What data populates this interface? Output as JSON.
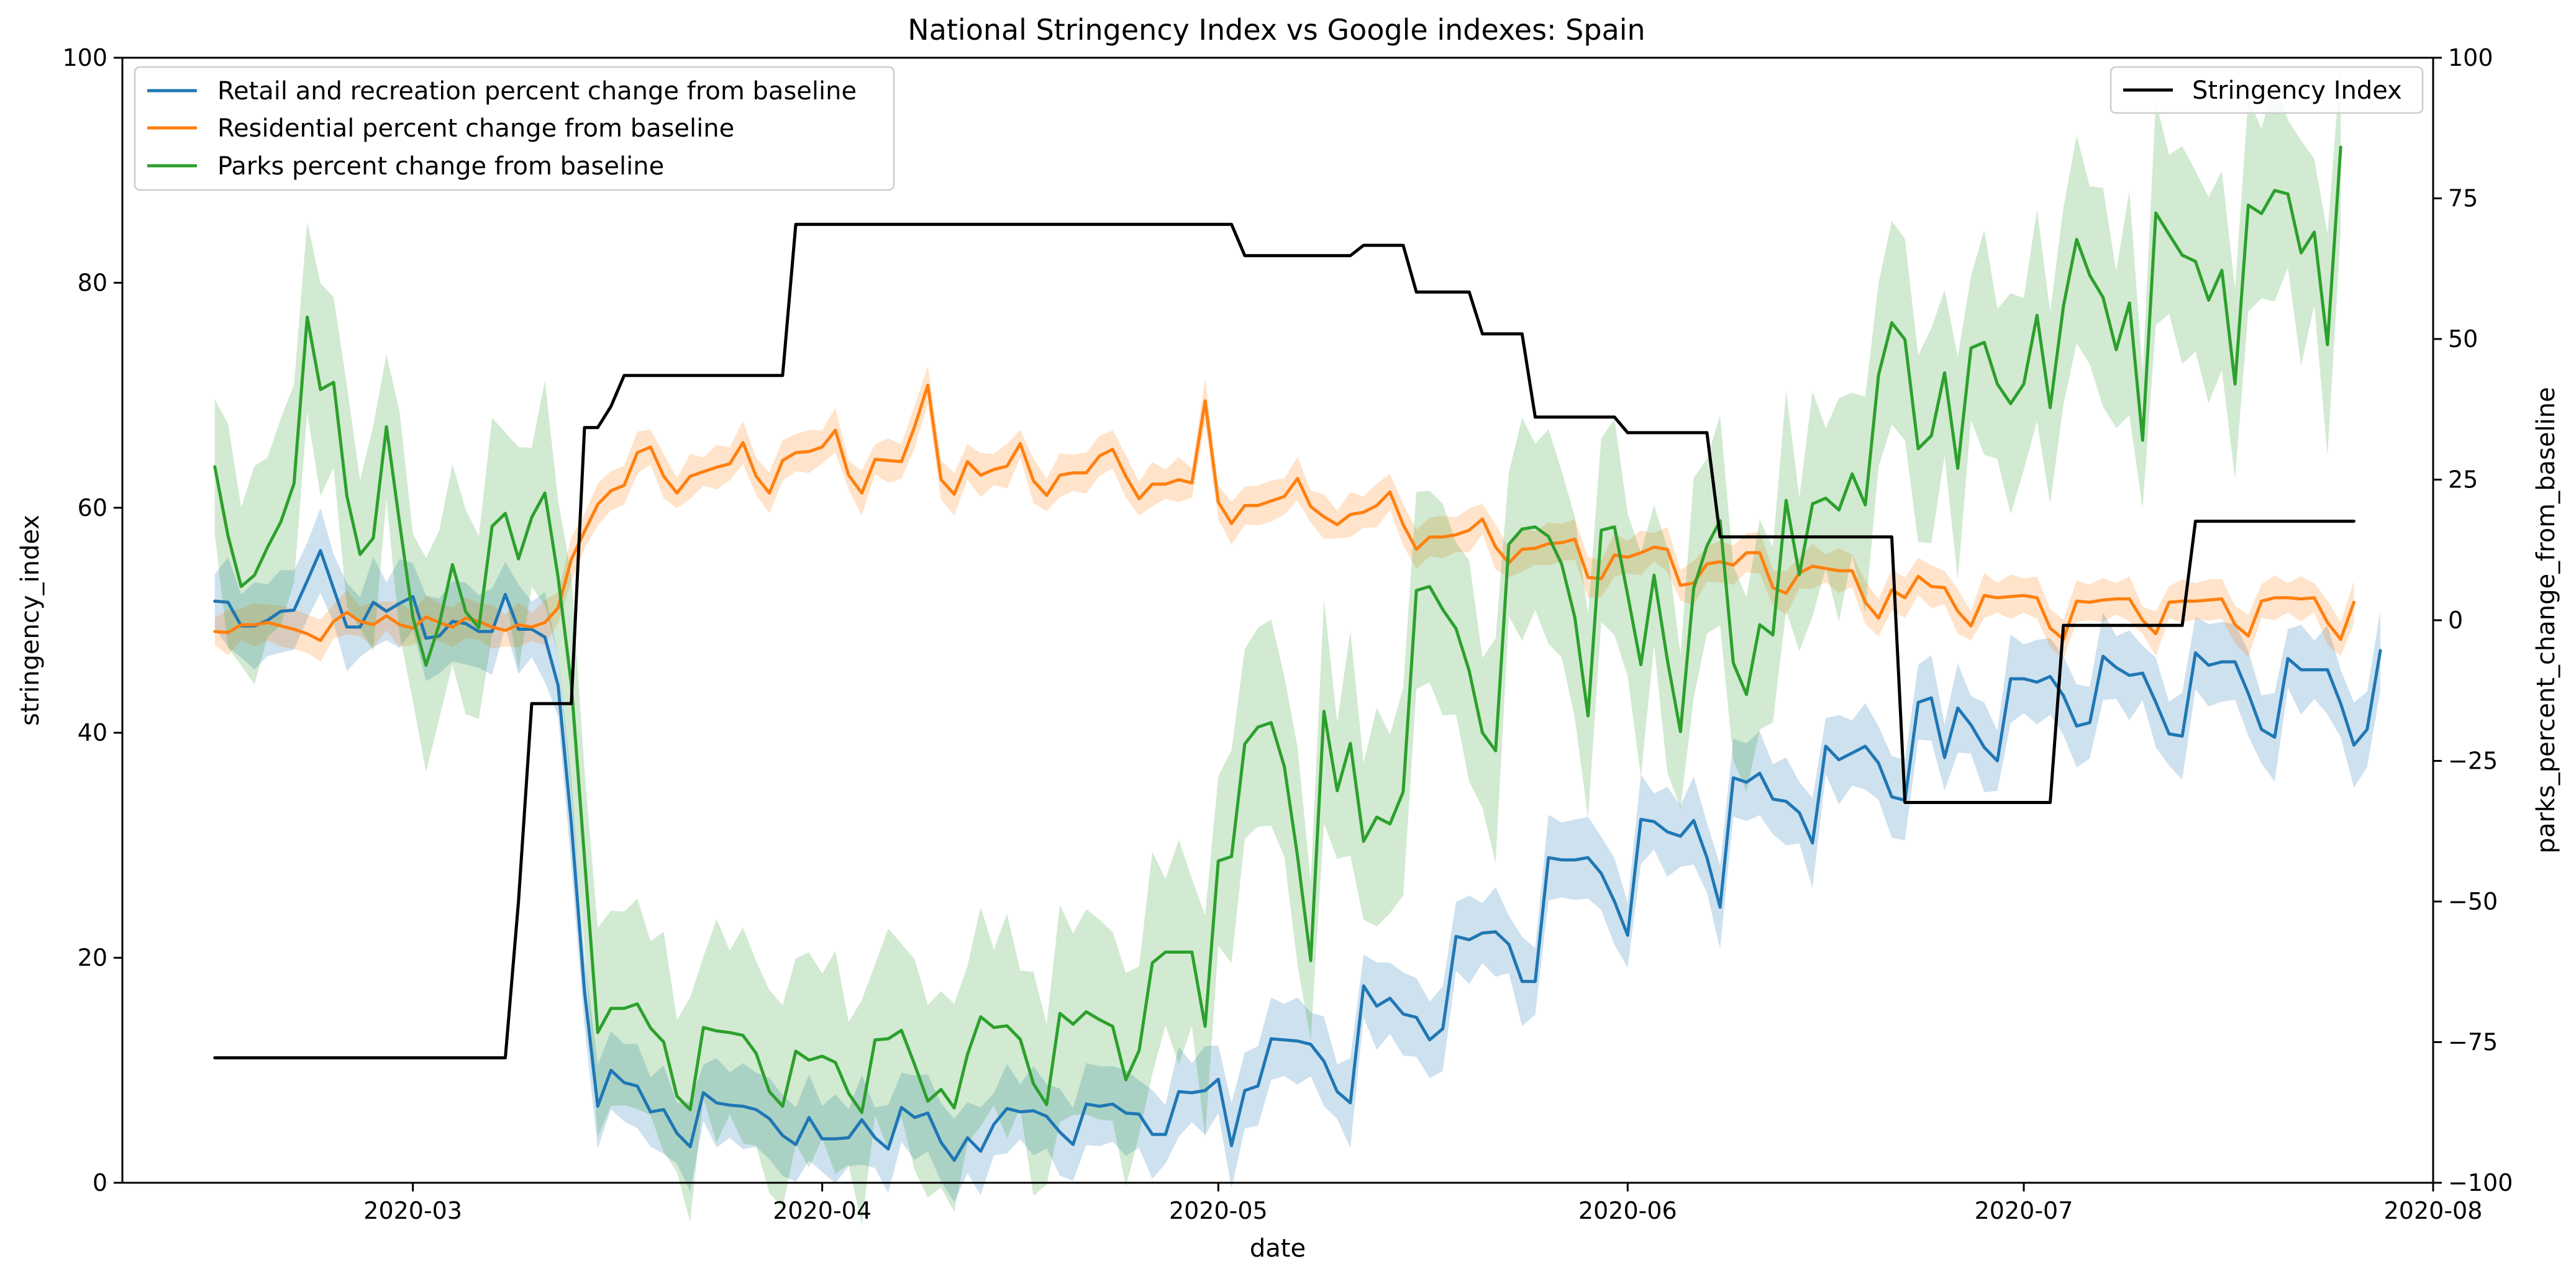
{
  "chart_data": {
    "type": "line",
    "title": "National Stringency Index vs Google indexes: Spain",
    "xlabel": "date",
    "ylabel_left": "stringency_index",
    "ylabel_right": "parks_percent_change_from_baseline",
    "ylim_left": [
      0,
      100
    ],
    "ylim_right": [
      -100,
      100
    ],
    "xlim": [
      "2020-02-08",
      "2020-08-01"
    ],
    "x_ticks": [
      "2020-03-01",
      "2020-04-01",
      "2020-05-01",
      "2020-06-01",
      "2020-07-01",
      "2020-08-01"
    ],
    "x_tick_labels": [
      "2020-03",
      "2020-04",
      "2020-05",
      "2020-06",
      "2020-07",
      "2020-08"
    ],
    "y_left_ticks": [
      "0",
      "20",
      "40",
      "60",
      "80",
      "100"
    ],
    "y_right_ticks": [
      "−100",
      "−75",
      "−50",
      "−25",
      "0",
      "25",
      "50",
      "75",
      "100"
    ],
    "grid": false,
    "legend_left_position": "upper-left",
    "legend_right_position": "upper-right",
    "series": [
      {
        "name": "Retail and recreation percent change from baseline",
        "axis": "left",
        "color": "#1f77b4",
        "start_date": "2020-02-15",
        "values": [
          51.7,
          51.6,
          49.5,
          49.5,
          50,
          50.8,
          50.9,
          53.5,
          56.2,
          52.8,
          49.4,
          49.4,
          51.6,
          50.8,
          51.5,
          52.1,
          48.4,
          48.6,
          49.9,
          49.7,
          49,
          49,
          52.3,
          49.2,
          49.2,
          48.5,
          44.2,
          32,
          17,
          6.8,
          10,
          8.9,
          8.6,
          6.3,
          6.5,
          4.4,
          3.2,
          8,
          7.1,
          6.9,
          6.8,
          6.5,
          5.7,
          4.2,
          3.4,
          5.8,
          3.9,
          3.9,
          4,
          5.6,
          4,
          3,
          6.7,
          5.8,
          6.2,
          3.6,
          2,
          4,
          2.8,
          5.2,
          6.6,
          6.3,
          6.4,
          5.9,
          4.5,
          3.4,
          7,
          6.8,
          7,
          6.2,
          6.1,
          4.3,
          4.3,
          8.1,
          8,
          8.2,
          9.2,
          3.3,
          8.2,
          8.6,
          12.8,
          12.7,
          12.6,
          12.3,
          10.8,
          8.1,
          7.1,
          17.5,
          15.7,
          16.4,
          15,
          14.7,
          12.7,
          13.7,
          21.9,
          21.6,
          22.2,
          22.3,
          21.2,
          17.9,
          17.9,
          28.9,
          28.7,
          28.7,
          28.9,
          27.5,
          25,
          22,
          32.3,
          32.1,
          31.2,
          30.8,
          32.2,
          28.9,
          24.5,
          36,
          35.6,
          36.4,
          34.1,
          33.9,
          32.9,
          30.2,
          38.8,
          37.6,
          38.2,
          38.8,
          37.3,
          34.3,
          34,
          42.7,
          43.1,
          37.8,
          42.2,
          40.7,
          38.7,
          37.5,
          44.8,
          44.8,
          44.5,
          45,
          43.3,
          40.6,
          40.9,
          46.8,
          45.8,
          45.1,
          45.3,
          42.7,
          39.9,
          39.7,
          47.1,
          46,
          46.3,
          46.3,
          43.5,
          40.3,
          39.6,
          46.6,
          45.6,
          45.6,
          45.6,
          42.6,
          38.9,
          40.3,
          47.3
        ]
      },
      {
        "name": "Residential percent change from baseline",
        "axis": "left",
        "color": "#ff7f0e",
        "start_date": "2020-02-15",
        "values": [
          49,
          48.9,
          49.6,
          49.6,
          49.8,
          49.5,
          49.2,
          48.8,
          48.2,
          49.9,
          50.7,
          49.9,
          49.6,
          50.4,
          49.6,
          49.3,
          50.3,
          49.8,
          49.4,
          50.2,
          49.9,
          49.4,
          49.1,
          49.6,
          49.4,
          49.8,
          51.1,
          55.4,
          57.9,
          60.3,
          61.5,
          62,
          64.9,
          65.4,
          62.8,
          61.3,
          62.8,
          63.2,
          63.6,
          63.9,
          65.8,
          62.8,
          61.3,
          64.2,
          64.9,
          65,
          65.4,
          66.9,
          62.9,
          61.3,
          64.3,
          64.2,
          64.1,
          67.2,
          70.9,
          62.5,
          61.2,
          64.1,
          62.9,
          63.4,
          63.7,
          65.7,
          62.4,
          61.1,
          62.9,
          63.1,
          63.1,
          64.6,
          65.2,
          62.8,
          60.8,
          62.1,
          62.1,
          62.5,
          62.2,
          69.5,
          60.5,
          58.6,
          60.2,
          60.2,
          60.6,
          61,
          62.6,
          60.1,
          59.2,
          58.5,
          59.4,
          59.6,
          60.2,
          61.4,
          58.5,
          56.3,
          57.4,
          57.4,
          57.6,
          58,
          59,
          56.5,
          55.1,
          56.3,
          56.4,
          56.8,
          56.9,
          57.2,
          53.8,
          53.7,
          55.8,
          55.6,
          56,
          56.5,
          56.3,
          53.1,
          53.3,
          55,
          55.2,
          54.9,
          56,
          56,
          52.9,
          52.4,
          54.2,
          54.8,
          54.6,
          54.4,
          54.4,
          51.6,
          50.2,
          52.7,
          52,
          53.9,
          53,
          52.9,
          50.8,
          49.5,
          52.2,
          52,
          52.1,
          52.2,
          52,
          49.3,
          48.3,
          51.7,
          51.6,
          51.8,
          51.9,
          51.9,
          50,
          48.8,
          51.6,
          51.7,
          51.7,
          51.8,
          51.9,
          49.6,
          48.6,
          51.7,
          52,
          52,
          51.9,
          52,
          49.8,
          48.3,
          51.6
        ]
      },
      {
        "name": "Parks percent change from baseline",
        "axis": "right",
        "color": "#2ca02c",
        "start_date": "2020-02-15",
        "values": [
          27.3,
          15,
          6,
          8,
          13,
          17.5,
          24.3,
          53.9,
          41,
          42.3,
          22.1,
          11.7,
          14.6,
          34.4,
          17.2,
          0.5,
          -8,
          -0.7,
          9.9,
          1.5,
          -1.3,
          16.7,
          19,
          10.9,
          18.3,
          22.6,
          7.6,
          -11.4,
          -42.4,
          -73.3,
          -69,
          -69,
          -68.2,
          -72.5,
          -75,
          -84.6,
          -87,
          -72.4,
          -73,
          -73.3,
          -73.8,
          -77,
          -83.8,
          -86.4,
          -76.6,
          -78.2,
          -77.5,
          -78.6,
          -84.1,
          -87.5,
          -74.6,
          -74.4,
          -72.9,
          -79,
          -85.5,
          -83.4,
          -86.7,
          -77.2,
          -70.5,
          -72.4,
          -72.1,
          -74.5,
          -82.4,
          -86.1,
          -69.9,
          -71.8,
          -69.6,
          -71,
          -72.2,
          -81.7,
          -76.5,
          -60.9,
          -59,
          -59,
          -59,
          -72.2,
          -42.8,
          -42,
          -22,
          -19,
          -18.2,
          -26,
          -42,
          -60.5,
          -16.2,
          -30.3,
          -21.9,
          -39.3,
          -35,
          -36.2,
          -30.5,
          5.3,
          6,
          1.9,
          -1.5,
          -9,
          -20,
          -23.2,
          13.5,
          16.2,
          16.6,
          14.9,
          10,
          0.5,
          -17,
          16,
          16.6,
          4.5,
          -7.9,
          8,
          -7,
          -19.8,
          5.7,
          13.2,
          17.7,
          -7.6,
          -13.2,
          -0.8,
          -2.6,
          21.3,
          8.1,
          20.7,
          21.7,
          19.6,
          26,
          20.5,
          43.6,
          52.9,
          49.9,
          30.5,
          32.8,
          44,
          27,
          48.4,
          49.4,
          42,
          38.5,
          42,
          54.2,
          37.8,
          55.8,
          67.7,
          61.3,
          57.4,
          48.1,
          56.4,
          32,
          72.4,
          68.6,
          64.9,
          63.8,
          56.9,
          62.2,
          42,
          73.8,
          72.3,
          76.4,
          75.8,
          65.3,
          69,
          49,
          84.1
        ]
      },
      {
        "name": "Stringency Index",
        "axis": "left",
        "color": "#000000",
        "steps": [
          {
            "from": "2020-02-15",
            "to": "2020-03-08",
            "value": 11.11
          },
          {
            "from": "2020-03-09",
            "to": "2020-03-09",
            "value": 25
          },
          {
            "from": "2020-03-10",
            "to": "2020-03-13",
            "value": 42.59
          },
          {
            "from": "2020-03-14",
            "to": "2020-03-14",
            "value": 67.13
          },
          {
            "from": "2020-03-15",
            "to": "2020-03-15",
            "value": 67.13
          },
          {
            "from": "2020-03-16",
            "to": "2020-03-16",
            "value": 69
          },
          {
            "from": "2020-03-17",
            "to": "2020-03-29",
            "value": 71.76
          },
          {
            "from": "2020-03-30",
            "to": "2020-05-02",
            "value": 85.19
          },
          {
            "from": "2020-05-03",
            "to": "2020-05-11",
            "value": 82.41
          },
          {
            "from": "2020-05-12",
            "to": "2020-05-15",
            "value": 83.33
          },
          {
            "from": "2020-05-16",
            "to": "2020-05-20",
            "value": 79.17
          },
          {
            "from": "2020-05-21",
            "to": "2020-05-24",
            "value": 75.46
          },
          {
            "from": "2020-05-25",
            "to": "2020-05-31",
            "value": 68.06
          },
          {
            "from": "2020-06-01",
            "to": "2020-06-07",
            "value": 66.67
          },
          {
            "from": "2020-06-08",
            "to": "2020-06-21",
            "value": 57.41
          },
          {
            "from": "2020-06-22",
            "to": "2020-07-03",
            "value": 33.8
          },
          {
            "from": "2020-07-04",
            "to": "2020-07-13",
            "value": 49.54
          },
          {
            "from": "2020-07-14",
            "to": "2020-07-26",
            "value": 58.8
          }
        ]
      }
    ]
  }
}
